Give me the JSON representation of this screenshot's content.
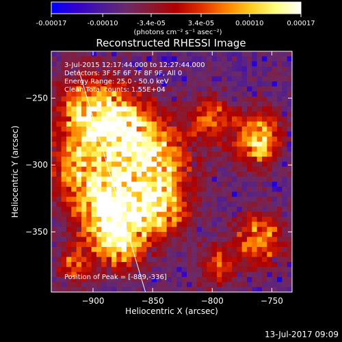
{
  "colorbar": {
    "ticks": [
      "-0.00017",
      "-0.00010",
      "-3.4e-05",
      "3.4e-05",
      "0.00010",
      "0.00017"
    ],
    "tick_values": [
      -0.00017,
      -0.0001,
      -3.4e-05,
      3.4e-05,
      0.0001,
      0.00017
    ],
    "range": [
      -0.00017,
      0.00017
    ],
    "unit_label": "(photons cm⁻² s⁻¹ asec⁻²)",
    "colors": [
      "#0000ff",
      "#3300cc",
      "#4b1a9a",
      "#6a2a6a",
      "#8a1a30",
      "#b00000",
      "#e03000",
      "#ff8000",
      "#ffcc20",
      "#ffff80",
      "#ffffff"
    ]
  },
  "chart_data": {
    "type": "heatmap",
    "title": "Reconstructed RHESSI Image",
    "xlabel": "Heliocentric X (arcsec)",
    "ylabel": "Heliocentric Y (arcsec)",
    "x_ticks": [
      -900,
      -850,
      -800,
      -750
    ],
    "y_ticks": [
      -250,
      -300,
      -350
    ],
    "xlim": [
      -935,
      -733
    ],
    "ylim": [
      -395,
      -215
    ],
    "annotations": [
      "3-Jul-2015 12:17:44.000 to 12:27:44.000",
      "Detectors: 3F 5F 6F 7F 8F 9F, All 0",
      "Energy Range: 25.0 - 50.0 keV",
      "Clean    Total counts: 1.55E+04"
    ],
    "peak_label": "Position of Peak = [-889,-336]",
    "peak": [
      -889,
      -336
    ],
    "limb_line": [
      [
        -912,
        -229
      ],
      [
        -856,
        -395
      ]
    ],
    "bright_regions": [
      {
        "x": -889,
        "y": -336,
        "r": 18,
        "amp": 1.0
      },
      {
        "x": -855,
        "y": -300,
        "r": 25,
        "amp": 0.95
      },
      {
        "x": -905,
        "y": -262,
        "r": 20,
        "amp": 0.75
      },
      {
        "x": -878,
        "y": -270,
        "r": 18,
        "amp": 0.6
      },
      {
        "x": -915,
        "y": -305,
        "r": 16,
        "amp": 0.6
      },
      {
        "x": -762,
        "y": -280,
        "r": 14,
        "amp": 0.85
      },
      {
        "x": -845,
        "y": -335,
        "r": 14,
        "amp": 0.7
      },
      {
        "x": -760,
        "y": -355,
        "r": 14,
        "amp": 0.7
      },
      {
        "x": -875,
        "y": -360,
        "r": 14,
        "amp": 0.6
      },
      {
        "x": -800,
        "y": -265,
        "r": 12,
        "amp": 0.5
      },
      {
        "x": -795,
        "y": -375,
        "r": 12,
        "amp": 0.45
      },
      {
        "x": -915,
        "y": -375,
        "r": 10,
        "amp": 0.55
      }
    ]
  },
  "timestamp": "13-Jul-2017 09:09"
}
